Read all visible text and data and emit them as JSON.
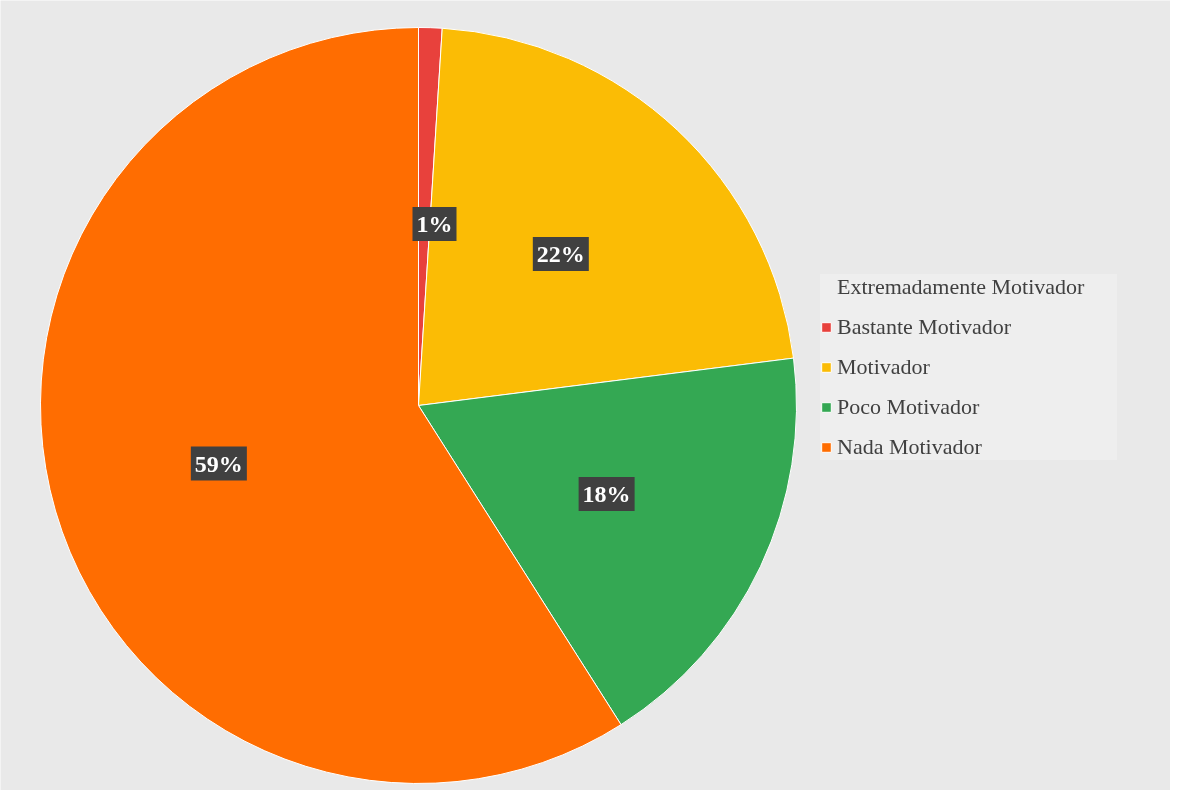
{
  "chart_data": {
    "type": "pie",
    "categories": [
      "Extremadamente Motivador",
      "Bastante Motivador",
      "Motivador",
      "Poco Motivador",
      "Nada Motivador"
    ],
    "values": [
      0,
      1,
      22,
      18,
      59
    ],
    "colors": [
      "#3b82e6",
      "#e8413c",
      "#fbbc05",
      "#34a853",
      "#ff6d01"
    ],
    "value_labels": [
      null,
      "1%",
      "22%",
      "18%",
      "59%"
    ],
    "legend": "right"
  }
}
